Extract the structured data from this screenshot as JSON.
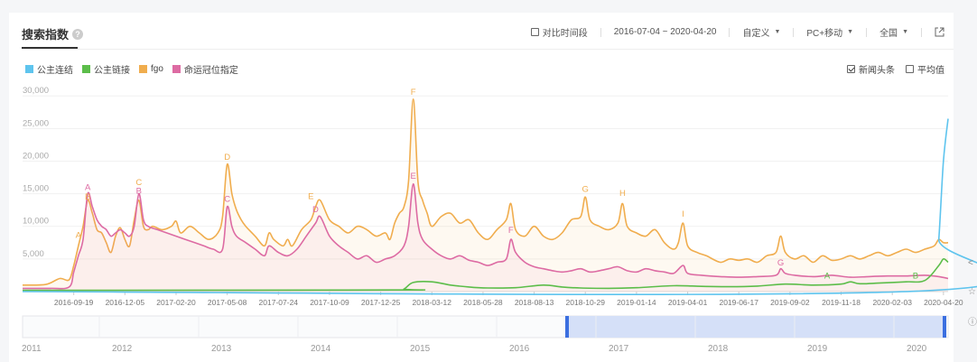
{
  "header": {
    "title": "搜索指数",
    "help_icon": "question-icon"
  },
  "controls": {
    "compare_label": "对比时间段",
    "date_range": "2016-07-04 ~ 2020-04-20",
    "custom_label": "自定义",
    "device_label": "PC+移动",
    "region_label": "全国",
    "export_icon": "external-link-icon"
  },
  "options": {
    "news_label": "新闻头条",
    "news_checked": true,
    "avg_label": "平均值",
    "avg_checked": false
  },
  "colors": {
    "blue": "#5ec4ee",
    "green": "#5cbd4a",
    "orange": "#f0ad4e",
    "pink": "#dd6ba3",
    "accent": "#3b6fe0"
  },
  "chart_data": {
    "type": "line",
    "ylim": [
      0,
      31000
    ],
    "yticks": [
      "30,000",
      "25,000",
      "20,000",
      "15,000",
      "10,000",
      "5,000"
    ],
    "ytick_values": [
      30000,
      25000,
      20000,
      15000,
      10000,
      5000
    ],
    "xticks": [
      "2016-09-19",
      "2016-12-05",
      "2017-02-20",
      "2017-05-08",
      "2017-07-24",
      "2017-10-09",
      "2017-12-25",
      "2018-03-12",
      "2018-05-28",
      "2018-08-13",
      "2018-10-29",
      "2019-01-14",
      "2019-04-01",
      "2019-06-17",
      "2019-09-02",
      "2019-11-18",
      "2020-02-03",
      "2020-04-20"
    ],
    "xtick_week": [
      11,
      22,
      33,
      44,
      55,
      66,
      77,
      88,
      99,
      110,
      121,
      132,
      143,
      154,
      165,
      176,
      187,
      198
    ],
    "total_weeks": 199,
    "series": [
      {
        "name": "公主连结",
        "color": "#5ec4ee",
        "points": [
          [
            0,
            0
          ],
          [
            196,
            200
          ],
          [
            197,
            8000
          ],
          [
            198,
            20000
          ],
          [
            199,
            26500
          ]
        ]
      },
      {
        "name": "公主链接",
        "color": "#5cbd4a",
        "points": [
          [
            0,
            200
          ],
          [
            80,
            250
          ],
          [
            82,
            400
          ],
          [
            84,
            1400
          ],
          [
            88,
            1500
          ],
          [
            92,
            1000
          ],
          [
            96,
            700
          ],
          [
            100,
            550
          ],
          [
            106,
            600
          ],
          [
            112,
            1000
          ],
          [
            116,
            700
          ],
          [
            120,
            550
          ],
          [
            126,
            500
          ],
          [
            132,
            600
          ],
          [
            140,
            900
          ],
          [
            146,
            800
          ],
          [
            152,
            750
          ],
          [
            158,
            850
          ],
          [
            164,
            1150
          ],
          [
            170,
            1000
          ],
          [
            176,
            1150
          ],
          [
            178,
            1500
          ],
          [
            180,
            1200
          ],
          [
            184,
            1300
          ],
          [
            190,
            1500
          ],
          [
            194,
            1700
          ],
          [
            197,
            4000
          ],
          [
            198,
            5000
          ],
          [
            199,
            4500
          ]
        ]
      },
      {
        "name": "fgo",
        "color": "#f0ad4e",
        "points": [
          [
            0,
            1000
          ],
          [
            5,
            1100
          ],
          [
            8,
            2000
          ],
          [
            10,
            1800
          ],
          [
            11,
            4000
          ],
          [
            12,
            7000
          ],
          [
            13,
            10000
          ],
          [
            14,
            14000
          ],
          [
            15,
            12000
          ],
          [
            16,
            9500
          ],
          [
            17,
            9000
          ],
          [
            18,
            7500
          ],
          [
            19,
            6000
          ],
          [
            20,
            8500
          ],
          [
            21,
            9800
          ],
          [
            22,
            8000
          ],
          [
            23,
            7000
          ],
          [
            24,
            11000
          ],
          [
            25,
            14000
          ],
          [
            26,
            10000
          ],
          [
            27,
            9500
          ],
          [
            28,
            10000
          ],
          [
            30,
            9500
          ],
          [
            32,
            10000
          ],
          [
            33,
            10800
          ],
          [
            34,
            9000
          ],
          [
            36,
            10000
          ],
          [
            38,
            9000
          ],
          [
            40,
            8000
          ],
          [
            42,
            9000
          ],
          [
            43,
            11500
          ],
          [
            44,
            19500
          ],
          [
            45,
            15000
          ],
          [
            46,
            12500
          ],
          [
            47,
            11000
          ],
          [
            48,
            10000
          ],
          [
            50,
            8500
          ],
          [
            52,
            7000
          ],
          [
            53,
            9000
          ],
          [
            54,
            8000
          ],
          [
            56,
            7000
          ],
          [
            57,
            8000
          ],
          [
            58,
            7000
          ],
          [
            60,
            9500
          ],
          [
            62,
            11000
          ],
          [
            63,
            13000
          ],
          [
            64,
            14000
          ],
          [
            66,
            11000
          ],
          [
            68,
            10000
          ],
          [
            70,
            9000
          ],
          [
            72,
            10000
          ],
          [
            74,
            9500
          ],
          [
            76,
            8500
          ],
          [
            78,
            9000
          ],
          [
            79,
            8000
          ],
          [
            80,
            10500
          ],
          [
            81,
            12000
          ],
          [
            82,
            13000
          ],
          [
            83,
            17000
          ],
          [
            84,
            29500
          ],
          [
            85,
            17000
          ],
          [
            86,
            14000
          ],
          [
            87,
            12000
          ],
          [
            88,
            10000
          ],
          [
            90,
            11500
          ],
          [
            92,
            12000
          ],
          [
            94,
            10500
          ],
          [
            96,
            11000
          ],
          [
            98,
            9000
          ],
          [
            100,
            8000
          ],
          [
            102,
            9500
          ],
          [
            104,
            11000
          ],
          [
            105,
            13500
          ],
          [
            106,
            9500
          ],
          [
            108,
            8500
          ],
          [
            110,
            10000
          ],
          [
            112,
            8500
          ],
          [
            114,
            8000
          ],
          [
            116,
            9000
          ],
          [
            118,
            11000
          ],
          [
            120,
            11500
          ],
          [
            121,
            14500
          ],
          [
            122,
            11000
          ],
          [
            124,
            10000
          ],
          [
            126,
            9500
          ],
          [
            128,
            10500
          ],
          [
            129,
            13500
          ],
          [
            130,
            10000
          ],
          [
            132,
            9000
          ],
          [
            134,
            8500
          ],
          [
            136,
            9500
          ],
          [
            138,
            7500
          ],
          [
            140,
            6500
          ],
          [
            141,
            7500
          ],
          [
            142,
            10500
          ],
          [
            143,
            7000
          ],
          [
            145,
            6000
          ],
          [
            147,
            5500
          ],
          [
            150,
            4500
          ],
          [
            152,
            5000
          ],
          [
            154,
            4800
          ],
          [
            156,
            5000
          ],
          [
            158,
            4500
          ],
          [
            160,
            5500
          ],
          [
            162,
            6000
          ],
          [
            163,
            8500
          ],
          [
            164,
            6000
          ],
          [
            166,
            5000
          ],
          [
            168,
            5500
          ],
          [
            170,
            4500
          ],
          [
            172,
            5500
          ],
          [
            174,
            4800
          ],
          [
            176,
            5000
          ],
          [
            178,
            5500
          ],
          [
            180,
            5000
          ],
          [
            182,
            5500
          ],
          [
            184,
            6000
          ],
          [
            186,
            5500
          ],
          [
            188,
            6000
          ],
          [
            190,
            6500
          ],
          [
            192,
            6000
          ],
          [
            194,
            6500
          ],
          [
            196,
            7000
          ],
          [
            197,
            8000
          ],
          [
            198,
            7500
          ],
          [
            199,
            7500
          ]
        ]
      },
      {
        "name": "命运冠位指定",
        "color": "#dd6ba3",
        "points": [
          [
            0,
            500
          ],
          [
            6,
            500
          ],
          [
            10,
            700
          ],
          [
            11,
            3000
          ],
          [
            12,
            5500
          ],
          [
            13,
            8000
          ],
          [
            14,
            15000
          ],
          [
            15,
            13000
          ],
          [
            16,
            11000
          ],
          [
            17,
            10000
          ],
          [
            18,
            9500
          ],
          [
            19,
            8500
          ],
          [
            20,
            9000
          ],
          [
            21,
            9500
          ],
          [
            22,
            9000
          ],
          [
            23,
            8500
          ],
          [
            24,
            10000
          ],
          [
            25,
            15000
          ],
          [
            26,
            11000
          ],
          [
            27,
            10000
          ],
          [
            29,
            9500
          ],
          [
            31,
            9000
          ],
          [
            33,
            8500
          ],
          [
            35,
            8000
          ],
          [
            37,
            7500
          ],
          [
            39,
            7000
          ],
          [
            41,
            6500
          ],
          [
            43,
            6500
          ],
          [
            44,
            13000
          ],
          [
            45,
            10000
          ],
          [
            46,
            8500
          ],
          [
            48,
            7500
          ],
          [
            50,
            6500
          ],
          [
            52,
            5500
          ],
          [
            53,
            7000
          ],
          [
            55,
            6000
          ],
          [
            57,
            5500
          ],
          [
            59,
            6500
          ],
          [
            61,
            8500
          ],
          [
            63,
            10500
          ],
          [
            64,
            11500
          ],
          [
            66,
            8500
          ],
          [
            68,
            7000
          ],
          [
            70,
            6000
          ],
          [
            72,
            5000
          ],
          [
            74,
            5500
          ],
          [
            76,
            4500
          ],
          [
            78,
            5000
          ],
          [
            80,
            5500
          ],
          [
            82,
            7000
          ],
          [
            83,
            10000
          ],
          [
            84,
            16500
          ],
          [
            85,
            10500
          ],
          [
            86,
            8000
          ],
          [
            88,
            6500
          ],
          [
            90,
            5500
          ],
          [
            92,
            5000
          ],
          [
            94,
            5500
          ],
          [
            96,
            4800
          ],
          [
            98,
            4500
          ],
          [
            100,
            4000
          ],
          [
            102,
            4500
          ],
          [
            104,
            5000
          ],
          [
            105,
            8000
          ],
          [
            106,
            6000
          ],
          [
            108,
            4500
          ],
          [
            110,
            3800
          ],
          [
            112,
            3500
          ],
          [
            114,
            3200
          ],
          [
            116,
            3000
          ],
          [
            118,
            3200
          ],
          [
            120,
            3500
          ],
          [
            122,
            3000
          ],
          [
            124,
            3200
          ],
          [
            126,
            3500
          ],
          [
            128,
            3800
          ],
          [
            130,
            3200
          ],
          [
            132,
            3000
          ],
          [
            134,
            3500
          ],
          [
            136,
            3200
          ],
          [
            138,
            3000
          ],
          [
            140,
            2800
          ],
          [
            142,
            4000
          ],
          [
            143,
            2800
          ],
          [
            146,
            2500
          ],
          [
            150,
            2300
          ],
          [
            154,
            2200
          ],
          [
            158,
            2300
          ],
          [
            162,
            2500
          ],
          [
            163,
            3500
          ],
          [
            164,
            2800
          ],
          [
            166,
            2500
          ],
          [
            170,
            2300
          ],
          [
            174,
            2500
          ],
          [
            178,
            2200
          ],
          [
            182,
            2300
          ],
          [
            186,
            2400
          ],
          [
            190,
            2400
          ],
          [
            194,
            2500
          ],
          [
            197,
            2300
          ],
          [
            199,
            2000
          ]
        ]
      }
    ],
    "annotations": [
      {
        "label": "A",
        "week": 12,
        "value": 8200,
        "color": "#f0ad4e"
      },
      {
        "label": "A",
        "week": 14,
        "value": 15600,
        "color": "#dd6ba3"
      },
      {
        "label": "B",
        "week": 14,
        "value": 14100,
        "color": "#f0ad4e"
      },
      {
        "label": "C",
        "week": 25,
        "value": 16300,
        "color": "#f0ad4e"
      },
      {
        "label": "B",
        "week": 25,
        "value": 15000,
        "color": "#dd6ba3"
      },
      {
        "label": "D",
        "week": 44,
        "value": 20200,
        "color": "#f0ad4e"
      },
      {
        "label": "C",
        "week": 44,
        "value": 13800,
        "color": "#dd6ba3"
      },
      {
        "label": "E",
        "week": 62,
        "value": 14200,
        "color": "#f0ad4e"
      },
      {
        "label": "D",
        "week": 63,
        "value": 12200,
        "color": "#dd6ba3"
      },
      {
        "label": "F",
        "week": 84,
        "value": 30200,
        "color": "#f0ad4e"
      },
      {
        "label": "E",
        "week": 84,
        "value": 17300,
        "color": "#dd6ba3"
      },
      {
        "label": "F",
        "week": 105,
        "value": 9000,
        "color": "#dd6ba3"
      },
      {
        "label": "G",
        "week": 121,
        "value": 15300,
        "color": "#f0ad4e"
      },
      {
        "label": "H",
        "week": 129,
        "value": 14700,
        "color": "#f0ad4e"
      },
      {
        "label": "I",
        "week": 142,
        "value": 11500,
        "color": "#f0ad4e"
      },
      {
        "label": "G",
        "week": 163,
        "value": 4000,
        "color": "#dd6ba3"
      },
      {
        "label": "A",
        "week": 173,
        "value": 2000,
        "color": "#5cbd4a"
      },
      {
        "label": "B",
        "week": 192,
        "value": 2000,
        "color": "#5cbd4a"
      }
    ],
    "navigator_years": [
      "2011",
      "2012",
      "2013",
      "2014",
      "2015",
      "2016",
      "2017",
      "2018",
      "2019",
      "2020"
    ]
  }
}
